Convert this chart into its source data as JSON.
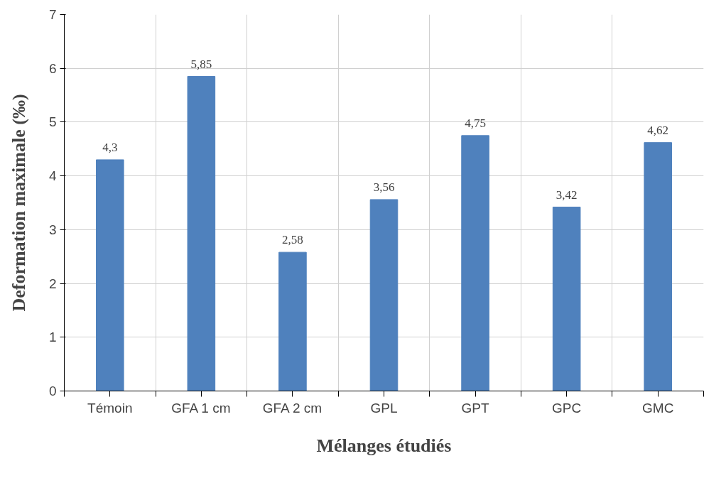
{
  "chart_data": {
    "type": "bar",
    "xlabel": "Mélanges étudiés",
    "ylabel": "Deformation maximale (‰)",
    "categories": [
      "Témoin",
      "GFA 1 cm",
      "GFA 2 cm",
      "GPL",
      "GPT",
      "GPC",
      "GMC"
    ],
    "values": [
      4.3,
      5.85,
      2.58,
      3.56,
      4.75,
      3.42,
      4.62
    ],
    "value_labels": [
      "4,3",
      "5,85",
      "2,58",
      "3,56",
      "4,75",
      "3,42",
      "4,62"
    ],
    "color": "#4f81bd",
    "ylim": [
      0,
      7
    ],
    "yticks": [
      0,
      1,
      2,
      3,
      4,
      5,
      6,
      7
    ],
    "grid": true
  }
}
